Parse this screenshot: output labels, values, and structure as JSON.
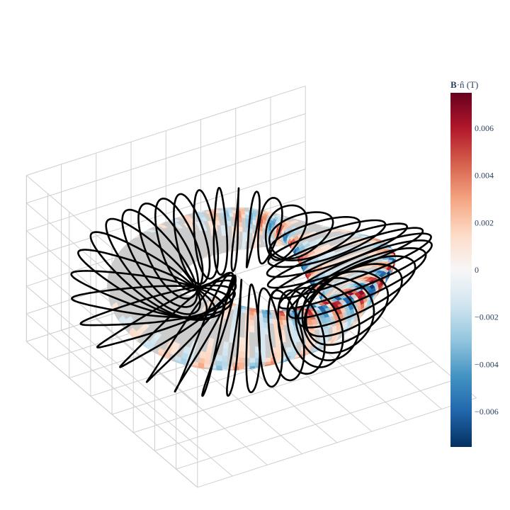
{
  "chart_data": {
    "type": "3d-surface",
    "colorbar": {
      "title_bold": "B",
      "title_rest": "·n̂ (T)",
      "colorscale": "RdBu_r",
      "range": [
        -0.0075,
        0.0075
      ],
      "ticks": [
        {
          "value": 0.006,
          "label": "0.006"
        },
        {
          "value": 0.004,
          "label": "0.004"
        },
        {
          "value": 0.002,
          "label": "0.002"
        },
        {
          "value": 0,
          "label": "0"
        },
        {
          "value": -0.002,
          "label": "−0.002"
        },
        {
          "value": -0.004,
          "label": "−0.004"
        },
        {
          "value": -0.006,
          "label": "−0.006"
        }
      ]
    },
    "surface": {
      "name": "plasma-boundary",
      "field_periods": 2,
      "max_abs_Bn": 0.0075
    },
    "coils": {
      "count": 40,
      "color": "#000000"
    },
    "grid": true,
    "axis_labels_shown": false
  }
}
